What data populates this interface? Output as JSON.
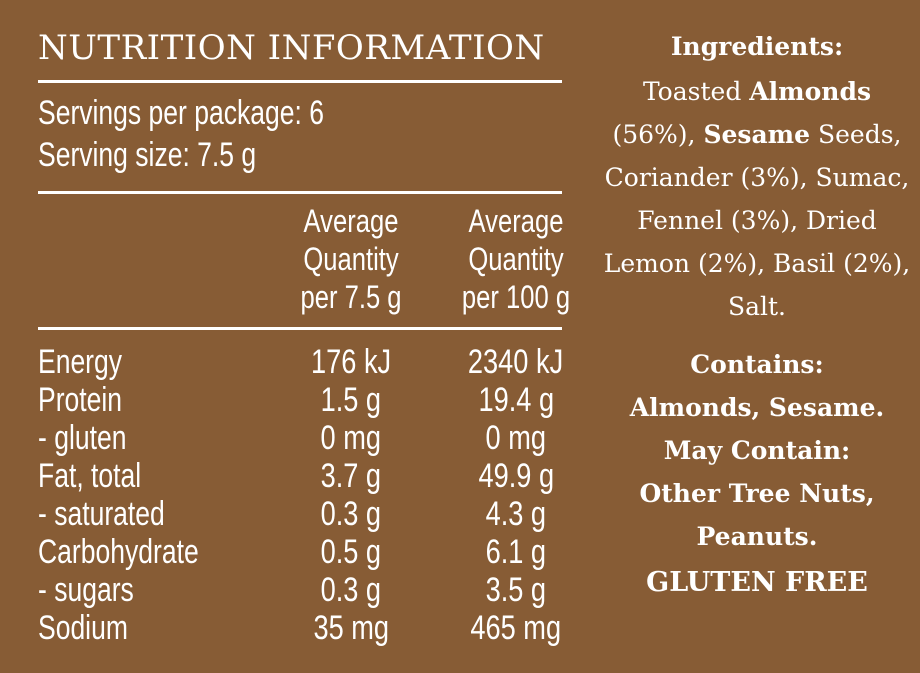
{
  "panel": {
    "title": "NUTRITION INFORMATION",
    "servings_per_package": "Servings per package: 6",
    "serving_size": "Serving size: 7.5 g",
    "col1_header": [
      "Average",
      "Quantity",
      "per 7.5 g"
    ],
    "col2_header": [
      "Average",
      "Quantity",
      "per 100 g"
    ],
    "rows": [
      {
        "label": "Energy",
        "per_serving": "176 kJ",
        "per_100g": "2340 kJ"
      },
      {
        "label": "Protein",
        "per_serving": "1.5 g",
        "per_100g": "19.4 g"
      },
      {
        "label": "- gluten",
        "per_serving": "0 mg",
        "per_100g": "0 mg"
      },
      {
        "label": "Fat, total",
        "per_serving": "3.7 g",
        "per_100g": "49.9 g"
      },
      {
        "label": "- saturated",
        "per_serving": "0.3 g",
        "per_100g": "4.3 g"
      },
      {
        "label": "Carbohydrate",
        "per_serving": "0.5 g",
        "per_100g": "6.1 g"
      },
      {
        "label": "- sugars",
        "per_serving": "0.3 g",
        "per_100g": "3.5 g"
      },
      {
        "label": "Sodium",
        "per_serving": "35 mg",
        "per_100g": "465 mg"
      }
    ]
  },
  "ingredients": {
    "title": "Ingredients:",
    "parts": [
      {
        "text": "Toasted ",
        "bold": false
      },
      {
        "text": "Almonds",
        "bold": true
      },
      {
        "text": " (56%), ",
        "bold": false
      },
      {
        "text": "Sesame",
        "bold": true
      },
      {
        "text": " Seeds, Coriander (3%), Sumac, Fennel (3%), Dried Lemon (2%), Basil (2%), Salt.",
        "bold": false
      }
    ]
  },
  "allergens": {
    "contains_title": "Contains:",
    "contains_text": "Almonds, Sesame.",
    "may_contain_title": "May Contain:",
    "may_contain_text": "Other Tree Nuts, Peanuts."
  },
  "gluten_free": "GLUTEN FREE",
  "colors": {
    "background": "#875c35",
    "text": "#ffffff"
  }
}
